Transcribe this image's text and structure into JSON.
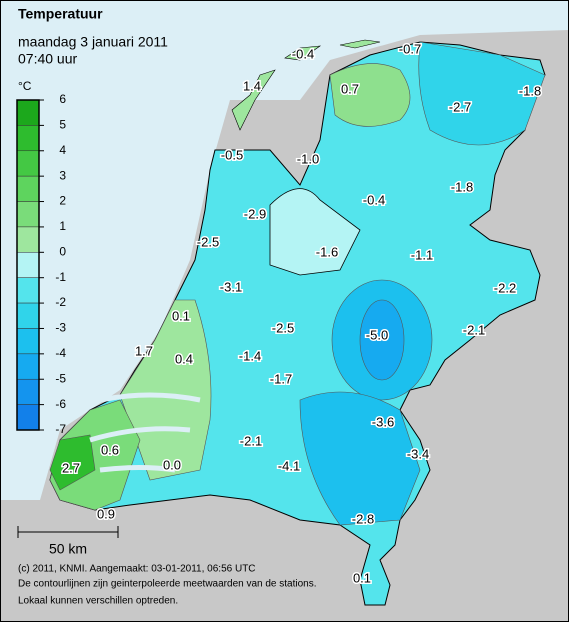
{
  "title": "Temperatuur",
  "subtitle": "maandag 3 januari 2011",
  "time": "07:40 uur",
  "legend": {
    "unit": "°C",
    "ticks": [
      6,
      5,
      4,
      3,
      2,
      1,
      0,
      -1,
      -2,
      -3,
      -4,
      -5,
      -6,
      -7
    ],
    "colors": [
      "#1ca81c",
      "#2ebc2e",
      "#44c844",
      "#5ed45e",
      "#7adc7a",
      "#9ee69e",
      "#b4f4f4",
      "#54e4ec",
      "#30d4ea",
      "#1cc0ee",
      "#16aaf0",
      "#1494ee",
      "#1280ea"
    ]
  },
  "stations": [
    "-0.4",
    "-0.7",
    "1.4",
    "0.7",
    "-2.7",
    "-1.8",
    "-0.5",
    "-1.0",
    "-1.8",
    "-0.4",
    "-2.9",
    "-2.5",
    "-1.6",
    "-1.1",
    "-2.2",
    "-3.1",
    "0.1",
    "-2.5",
    "-5.0",
    "-2.1",
    "1.7",
    "0.4",
    "-1.4",
    "-1.7",
    "-3.6",
    "-2.1",
    "0.6",
    "-3.4",
    "-4.1",
    "0.0",
    "2.7",
    "0.9",
    "-2.8",
    "0.1"
  ],
  "scale": "50 km",
  "footer": [
    "(c) 2011, KNMI. Aangemaakt: 03-01-2011, 06:56 UTC",
    "De contourlijnen zijn geinterpoleerde meetwaarden van de stations.",
    "Lokaal kunnen verschillen optreden."
  ]
}
